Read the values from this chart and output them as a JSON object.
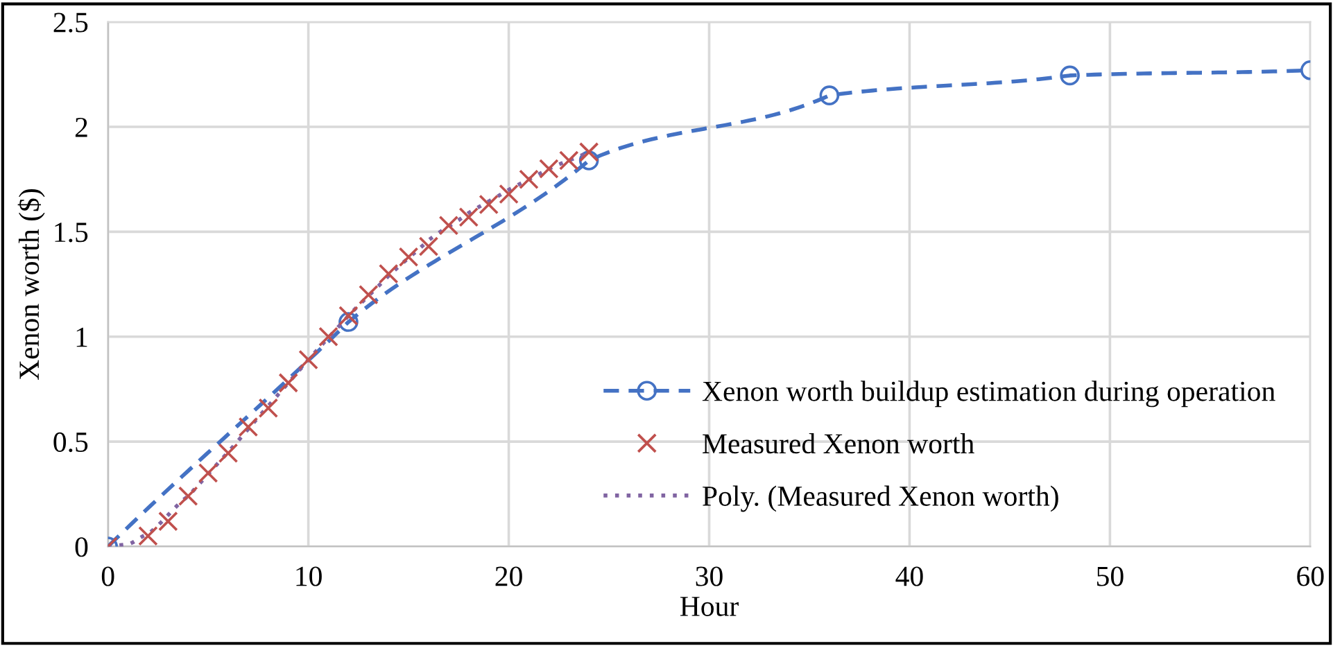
{
  "chart_data": {
    "type": "line",
    "xlabel": "Hour",
    "ylabel": "Xenon worth ($)",
    "xlim": [
      0,
      60
    ],
    "xticks": [
      0,
      10,
      20,
      30,
      40,
      50,
      60
    ],
    "ylim": [
      0,
      2.5
    ],
    "yticks": [
      0,
      0.5,
      1,
      1.5,
      2,
      2.5
    ],
    "grid": true,
    "legend": "bottom right",
    "series": [
      {
        "name": "Xenon worth buildup estimation during operation",
        "type": "line",
        "color": "#4472c4",
        "marker": "circle",
        "line_style": "dashed",
        "x": [
          0,
          12,
          24,
          36,
          48,
          60
        ],
        "values": [
          0,
          1.07,
          1.84,
          2.15,
          2.245,
          2.27
        ]
      },
      {
        "name": "Measured Xenon worth",
        "type": "scatter",
        "color": "#c0504d",
        "marker": "cross",
        "x": [
          0,
          2,
          3,
          4,
          5,
          6,
          7,
          8,
          9,
          10,
          11,
          12,
          13,
          14,
          15,
          16,
          17,
          18,
          19,
          20,
          21,
          22,
          23,
          24
        ],
        "values": [
          0,
          0.05,
          0.12,
          0.24,
          0.35,
          0.445,
          0.57,
          0.66,
          0.78,
          0.89,
          1.0,
          1.1,
          1.2,
          1.3,
          1.38,
          1.43,
          1.53,
          1.57,
          1.63,
          1.68,
          1.75,
          1.8,
          1.84,
          1.88
        ]
      },
      {
        "name": "Poly. (Measured Xenon worth)",
        "color": "#8064a2",
        "marker": "none",
        "line_style": "dotted",
        "x": [
          0,
          1,
          2,
          4,
          6,
          8,
          10,
          12,
          14,
          16,
          18,
          20,
          22,
          24
        ],
        "values": [
          0,
          0.01,
          0.06,
          0.24,
          0.45,
          0.67,
          0.89,
          1.1,
          1.29,
          1.46,
          1.59,
          1.7,
          1.8,
          1.88
        ]
      }
    ]
  }
}
